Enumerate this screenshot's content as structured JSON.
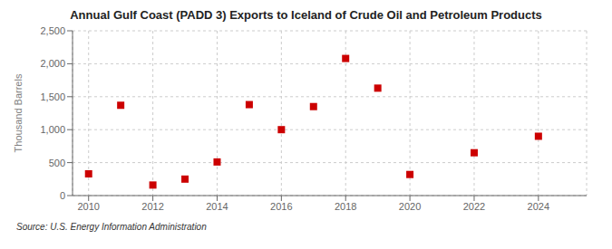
{
  "chart_data": {
    "type": "scatter",
    "title": "Annual Gulf Coast (PADD 3) Exports to Iceland of Crude Oil and Petroleum Products",
    "ylabel": "Thousand Barrels",
    "annotations": [
      "Source: U.S. Energy Information Administration"
    ],
    "x": [
      2010,
      2011,
      2012,
      2013,
      2014,
      2015,
      2016,
      2017,
      2018,
      2019,
      2020,
      2021,
      2022,
      2023,
      2024
    ],
    "values": [
      330,
      1370,
      160,
      250,
      510,
      1380,
      1000,
      1350,
      2080,
      1630,
      320,
      null,
      650,
      null,
      900
    ],
    "color": "#cc0000",
    "marker": "square",
    "xlim": [
      2009.5,
      2025.5
    ],
    "xticks": [
      2010,
      2012,
      2014,
      2016,
      2018,
      2020,
      2022,
      2024
    ],
    "ylim": [
      0,
      2500
    ],
    "yticks": [
      0,
      500,
      {
        "value": 1000,
        "label": "1,000"
      },
      {
        "value": 1500,
        "label": "1,500"
      },
      {
        "value": 2000,
        "label": "2,000"
      },
      {
        "value": 2500,
        "label": "2,500"
      }
    ],
    "grid": true
  }
}
